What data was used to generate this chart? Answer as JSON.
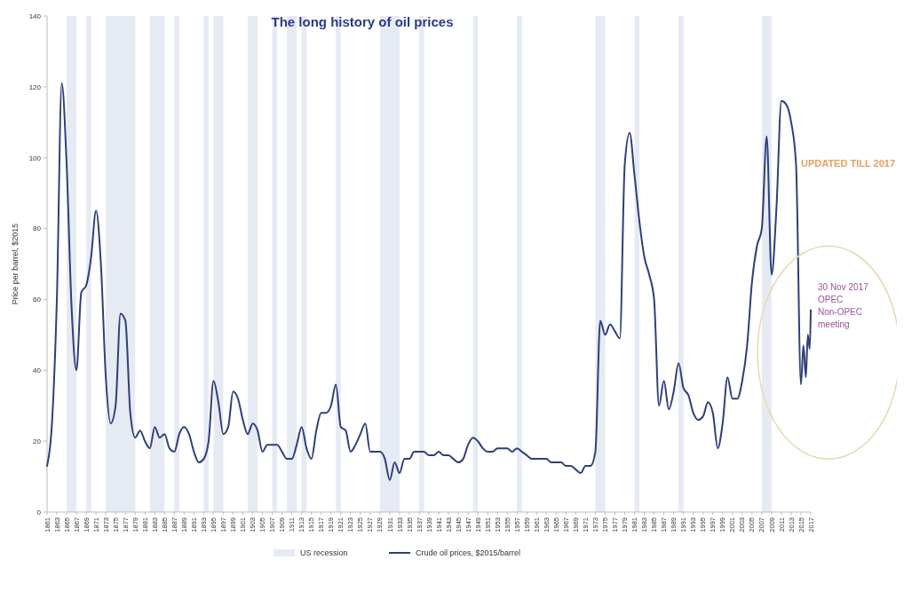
{
  "chart_data": {
    "type": "line",
    "title": "The long history of oil prices",
    "ylabel": "Price per barrel, $2015",
    "legend": "bottom",
    "grid": false,
    "marker": "none",
    "line_style": "solid",
    "xlim": [
      1861,
      2017
    ],
    "xticks": [
      1861,
      1863,
      1865,
      1867,
      1869,
      1871,
      1873,
      1875,
      1877,
      1879,
      1881,
      1883,
      1885,
      1887,
      1889,
      1891,
      1893,
      1895,
      1897,
      1899,
      1901,
      1903,
      1905,
      1907,
      1909,
      1911,
      1913,
      1915,
      1917,
      1919,
      1921,
      1923,
      1925,
      1927,
      1929,
      1931,
      1933,
      1935,
      1937,
      1939,
      1941,
      1943,
      1945,
      1947,
      1949,
      1951,
      1953,
      1955,
      1957,
      1959,
      1961,
      1963,
      1965,
      1967,
      1969,
      1971,
      1973,
      1975,
      1977,
      1979,
      1981,
      1983,
      1985,
      1987,
      1989,
      1991,
      1993,
      1995,
      1997,
      1999,
      2001,
      2003,
      2005,
      2007,
      2009,
      2011,
      2013,
      2015,
      2017
    ],
    "ylim": [
      0,
      140
    ],
    "yticks": [
      0,
      20,
      40,
      60,
      80,
      100,
      120,
      140
    ],
    "series": [
      {
        "name": "Crude oil prices, $2015/barrel",
        "color": "#2e3f7a",
        "x": [
          1861,
          1862,
          1863,
          1864,
          1865,
          1866,
          1867,
          1868,
          1869,
          1870,
          1871,
          1872,
          1873,
          1874,
          1875,
          1876,
          1877,
          1878,
          1879,
          1880,
          1881,
          1882,
          1883,
          1884,
          1885,
          1886,
          1887,
          1888,
          1889,
          1890,
          1891,
          1892,
          1893,
          1894,
          1895,
          1896,
          1897,
          1898,
          1899,
          1900,
          1901,
          1902,
          1903,
          1904,
          1905,
          1906,
          1907,
          1908,
          1909,
          1910,
          1911,
          1912,
          1913,
          1914,
          1915,
          1916,
          1917,
          1918,
          1919,
          1920,
          1921,
          1922,
          1923,
          1924,
          1925,
          1926,
          1927,
          1928,
          1929,
          1930,
          1931,
          1932,
          1933,
          1934,
          1935,
          1936,
          1937,
          1938,
          1939,
          1940,
          1941,
          1942,
          1943,
          1944,
          1945,
          1946,
          1947,
          1948,
          1949,
          1950,
          1951,
          1952,
          1953,
          1954,
          1955,
          1956,
          1957,
          1958,
          1959,
          1960,
          1961,
          1962,
          1963,
          1964,
          1965,
          1966,
          1967,
          1968,
          1969,
          1970,
          1971,
          1972,
          1973,
          1974,
          1975,
          1976,
          1977,
          1978,
          1979,
          1980,
          1981,
          1982,
          1983,
          1984,
          1985,
          1986,
          1987,
          1988,
          1989,
          1990,
          1991,
          1992,
          1993,
          1994,
          1995,
          1996,
          1997,
          1998,
          1999,
          2000,
          2001,
          2002,
          2003,
          2004,
          2005,
          2006,
          2007,
          2008,
          2009,
          2010,
          2011,
          2012,
          2013,
          2014,
          2015,
          2015.5,
          2016,
          2016.4,
          2016.8,
          2017
        ],
        "values": [
          13,
          25,
          60,
          121,
          98,
          58,
          40,
          62,
          64,
          72,
          85,
          70,
          38,
          25,
          30,
          56,
          54,
          28,
          21,
          23,
          20,
          18,
          24,
          21,
          22,
          18,
          17,
          22,
          24,
          22,
          17,
          14,
          15,
          20,
          37,
          31,
          22,
          24,
          34,
          32,
          26,
          22,
          25,
          23,
          17,
          19,
          19,
          19,
          17,
          15,
          15,
          19,
          24,
          18,
          15,
          23,
          28,
          28,
          30,
          36,
          24,
          23,
          17,
          19,
          22,
          25,
          17,
          17,
          17,
          15,
          9,
          14,
          11,
          15,
          15,
          17,
          17,
          17,
          16,
          16,
          17,
          16,
          16,
          15,
          14,
          15,
          19,
          21,
          20,
          18,
          17,
          17,
          18,
          18,
          18,
          17,
          18,
          17,
          16,
          15,
          15,
          15,
          15,
          14,
          14,
          14,
          13,
          13,
          12,
          11,
          13,
          13,
          17,
          54,
          50,
          53,
          51,
          49,
          98,
          107,
          95,
          82,
          72,
          67,
          60,
          30,
          37,
          29,
          34,
          42,
          35,
          33,
          28,
          26,
          27,
          31,
          28,
          18,
          25,
          38,
          32,
          32,
          37,
          47,
          65,
          75,
          80,
          106,
          67,
          86,
          116,
          115,
          110,
          98,
          36,
          47,
          38,
          50,
          46,
          57
        ]
      }
    ],
    "bands": [
      {
        "axis": "x",
        "from": 1865,
        "to": 1867,
        "label": "US recession",
        "color": "#e6eaf3"
      },
      {
        "axis": "x",
        "from": 1869,
        "to": 1870,
        "color": "#e6eaf3"
      },
      {
        "axis": "x",
        "from": 1873,
        "to": 1879,
        "color": "#e6eaf3"
      },
      {
        "axis": "x",
        "from": 1882,
        "to": 1885,
        "color": "#e6eaf3"
      },
      {
        "axis": "x",
        "from": 1887,
        "to": 1888,
        "color": "#e6eaf3"
      },
      {
        "axis": "x",
        "from": 1893,
        "to": 1894,
        "color": "#e6eaf3"
      },
      {
        "axis": "x",
        "from": 1895,
        "to": 1897,
        "color": "#e6eaf3"
      },
      {
        "axis": "x",
        "from": 1902,
        "to": 1904,
        "color": "#e6eaf3"
      },
      {
        "axis": "x",
        "from": 1907,
        "to": 1908,
        "color": "#e6eaf3"
      },
      {
        "axis": "x",
        "from": 1910,
        "to": 1912,
        "color": "#e6eaf3"
      },
      {
        "axis": "x",
        "from": 1913,
        "to": 1914,
        "color": "#e6eaf3"
      },
      {
        "axis": "x",
        "from": 1920,
        "to": 1921,
        "color": "#e6eaf3"
      },
      {
        "axis": "x",
        "from": 1929,
        "to": 1933,
        "color": "#e6eaf3"
      },
      {
        "axis": "x",
        "from": 1937,
        "to": 1938,
        "color": "#e6eaf3"
      },
      {
        "axis": "x",
        "from": 1948,
        "to": 1949,
        "color": "#e6eaf3"
      },
      {
        "axis": "x",
        "from": 1957,
        "to": 1958,
        "color": "#e6eaf3"
      },
      {
        "axis": "x",
        "from": 1973,
        "to": 1975,
        "color": "#e6eaf3"
      },
      {
        "axis": "x",
        "from": 1981,
        "to": 1982,
        "color": "#e6eaf3"
      },
      {
        "axis": "x",
        "from": 1990,
        "to": 1991,
        "color": "#e6eaf3"
      },
      {
        "axis": "x",
        "from": 2007,
        "to": 2009,
        "color": "#e6eaf3"
      }
    ],
    "annotations": [
      {
        "text": "30 Nov 2017 OPEC Non-OPEC meeting",
        "x": 2017,
        "y": 57
      },
      "UPDATED TILL 2017"
    ]
  }
}
